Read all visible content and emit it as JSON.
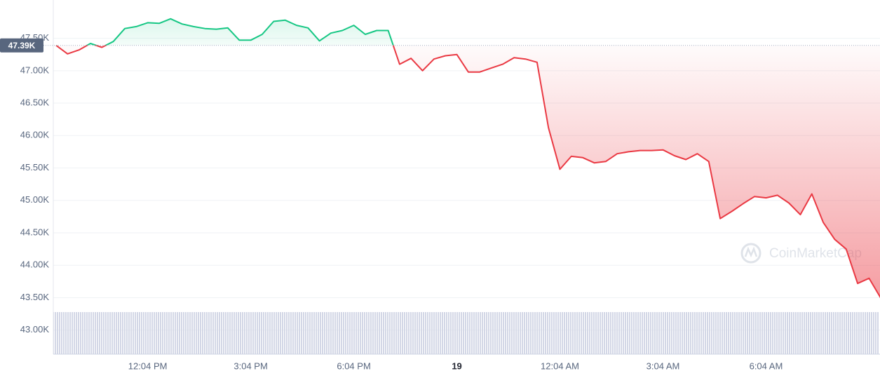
{
  "chart_data": {
    "type": "line",
    "categories": [
      null,
      null,
      null,
      null,
      null,
      null,
      null,
      null,
      "12:04 PM",
      null,
      null,
      null,
      null,
      null,
      null,
      null,
      null,
      "3:04 PM",
      null,
      null,
      null,
      null,
      null,
      null,
      null,
      null,
      "6:04 PM",
      null,
      null,
      null,
      null,
      null,
      null,
      null,
      null,
      "19",
      null,
      null,
      null,
      null,
      null,
      null,
      null,
      null,
      "12:04 AM",
      null,
      null,
      null,
      null,
      null,
      null,
      null,
      null,
      "3:04 AM",
      null,
      null,
      null,
      null,
      null,
      null,
      null,
      null,
      "6:04 AM",
      null,
      null,
      null,
      null,
      null,
      null,
      null,
      null,
      null,
      null
    ],
    "series": [
      {
        "color_up": "#16c784",
        "color": "#ea3943",
        "values": [
          47390,
          47260,
          47320,
          47420,
          47360,
          47450,
          47650,
          47680,
          47740,
          47730,
          47800,
          47720,
          47680,
          47650,
          47640,
          47660,
          47470,
          47470,
          47560,
          47760,
          47780,
          47700,
          47660,
          47460,
          47580,
          47620,
          47700,
          47560,
          47620,
          47620,
          47100,
          47190,
          47000,
          47180,
          47230,
          47250,
          46980,
          46980,
          47040,
          47100,
          47200,
          47180,
          47130,
          46120,
          45480,
          45680,
          45660,
          45580,
          45600,
          45720,
          45750,
          45770,
          45770,
          45780,
          45690,
          45630,
          45720,
          45600,
          44720,
          44830,
          44950,
          45060,
          45040,
          45080,
          44960,
          44780,
          45100,
          44660,
          44400,
          44250,
          43720,
          43800,
          43500
        ]
      }
    ],
    "reference": {
      "value": 47390,
      "label": "47.39K"
    },
    "ylim": [
      42630,
      48090
    ],
    "yticks": [
      {
        "value": 43000,
        "label": "43.00K"
      },
      {
        "value": 43500,
        "label": "43.50K"
      },
      {
        "value": 44000,
        "label": "44.00K"
      },
      {
        "value": 44500,
        "label": "44.50K"
      },
      {
        "value": 45000,
        "label": "45.00K"
      },
      {
        "value": 45500,
        "label": "45.50K"
      },
      {
        "value": 46000,
        "label": "46.00K"
      },
      {
        "value": 46500,
        "label": "46.50K"
      },
      {
        "value": 47000,
        "label": "47.00K"
      },
      {
        "value": 47500,
        "label": "47.50K"
      }
    ],
    "grid": true,
    "watermark": "CoinMarketCap"
  }
}
